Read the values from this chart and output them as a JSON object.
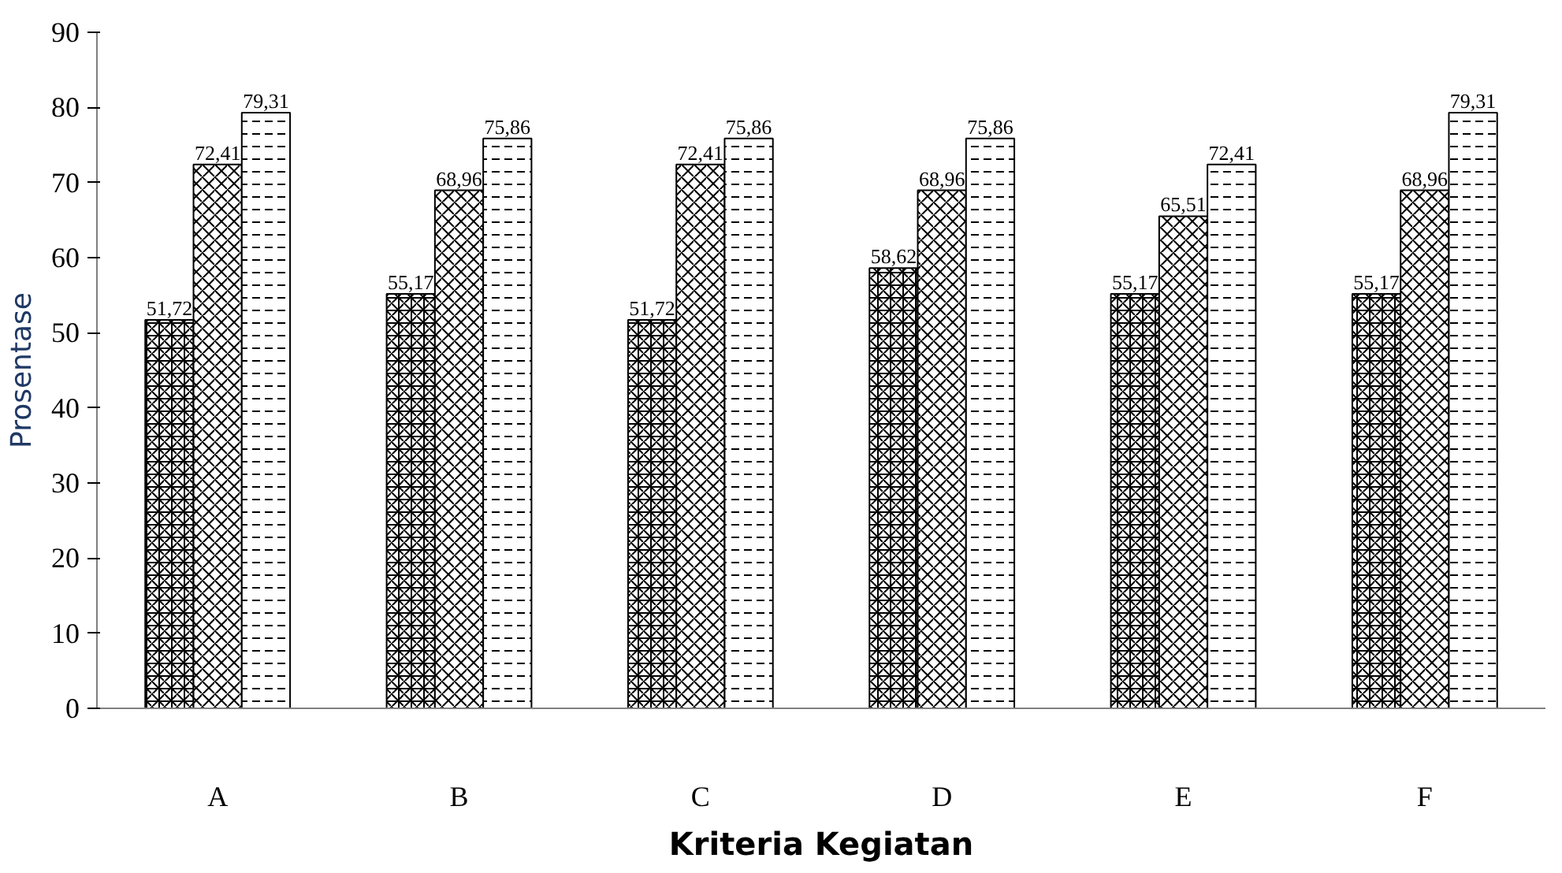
{
  "chart_data": {
    "type": "bar",
    "xlabel": "Kriteria Kegiatan",
    "ylabel": "Prosentase",
    "categories": [
      "A",
      "B",
      "C",
      "D",
      "E",
      "F"
    ],
    "series": [
      {
        "color": "#000000",
        "values": [
          51.72,
          55.17,
          51.72,
          58.62,
          55.17,
          55.17
        ],
        "value_labels": [
          "51,72",
          "55,17",
          "51,72",
          "58,62",
          "55,17",
          "55,17"
        ]
      },
      {
        "color": "#000000",
        "values": [
          72.41,
          68.96,
          72.41,
          68.96,
          65.51,
          68.96
        ],
        "value_labels": [
          "72,41",
          "68,96",
          "72,41",
          "68,96",
          "65,51",
          "68,96"
        ]
      },
      {
        "color": "#000000",
        "values": [
          79.31,
          75.86,
          75.86,
          75.86,
          72.41,
          79.31
        ],
        "value_labels": [
          "79,31",
          "75,86",
          "75,86",
          "75,86",
          "72,41",
          "79,31"
        ]
      }
    ],
    "ylim": [
      0,
      90
    ],
    "yticks": [
      0,
      10,
      20,
      30,
      40,
      50,
      60,
      70,
      80,
      90
    ],
    "grid": false
  }
}
